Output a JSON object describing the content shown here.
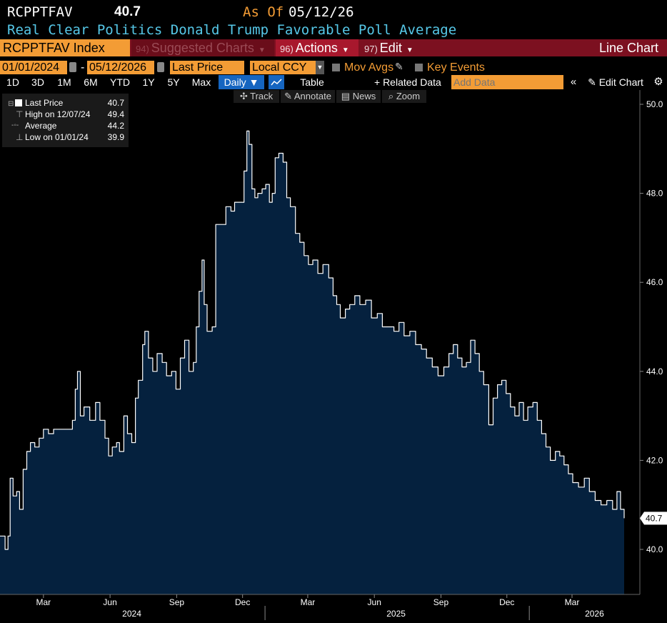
{
  "header": {
    "ticker": "RCPPTFAV",
    "price": "40.7",
    "as_of_label": "As Of",
    "as_of_date": "05/12/26",
    "subtitle": "Real Clear Politics Donald Trump Favorable Poll Average"
  },
  "toolbar": {
    "index": "RCPPTFAV Index",
    "suggested_key": "94)",
    "suggested": "Suggested Charts",
    "actions_key": "96)",
    "actions": "Actions",
    "edit_key": "97)",
    "edit": "Edit",
    "chart_type": "Line Chart"
  },
  "controls": {
    "start_date": "01/01/2024",
    "dash": "-",
    "end_date": "05/12/2026",
    "field": "Last Price",
    "currency": "Local CCY",
    "mov_avgs": "Mov Avgs",
    "key_events": "Key Events"
  },
  "periods": [
    "1D",
    "3D",
    "1M",
    "6M",
    "YTD",
    "1Y",
    "5Y",
    "Max"
  ],
  "frequency": "Daily",
  "table_label": "Table",
  "related_data": "+ Related Data",
  "add_data_placeholder": "Add Data",
  "edit_chart": "Edit Chart",
  "chart_tools": {
    "track": "Track",
    "annotate": "Annotate",
    "news": "News",
    "zoom": "Zoom"
  },
  "legend": {
    "last_label": "Last Price",
    "last_value": "40.7",
    "high_label": "High on 12/07/24",
    "high_value": "49.4",
    "avg_label": "Average",
    "avg_value": "44.2",
    "low_label": "Low on 01/01/24",
    "low_value": "39.9"
  },
  "colors": {
    "area_fill": "#05213e",
    "line": "#ffffff",
    "accent_orange": "#f39c35",
    "subtitle_cyan": "#56c8e8",
    "toolbar_red": "#7c1020"
  },
  "chart_data": {
    "type": "area",
    "series_name": "RCPPTFAV Index",
    "ylim": [
      39.0,
      50.2
    ],
    "yticks": [
      "40.0",
      "42.0",
      "44.0",
      "46.0",
      "48.0",
      "50.0"
    ],
    "last_value_label": "40.7",
    "xticks": [
      "Mar",
      "Jun",
      "Sep",
      "Dec",
      "Mar",
      "Jun",
      "Sep",
      "Dec",
      "Mar"
    ],
    "xtick_dates": [
      "2024-03-01",
      "2024-06-01",
      "2024-09-01",
      "2024-12-01",
      "2025-03-01",
      "2025-06-01",
      "2025-09-01",
      "2025-12-01",
      "2026-03-01"
    ],
    "years": [
      "2024",
      "2025",
      "2026"
    ],
    "year_dates": [
      "2024-07-01",
      "2025-07-01",
      "2026-04-01"
    ],
    "x_range": [
      "2024-01-01",
      "2026-05-12"
    ],
    "points": [
      [
        "2024-01-01",
        40.3
      ],
      [
        "2024-01-04",
        40.3
      ],
      [
        "2024-01-08",
        40.0
      ],
      [
        "2024-01-12",
        40.3
      ],
      [
        "2024-01-15",
        41.6
      ],
      [
        "2024-01-19",
        41.2
      ],
      [
        "2024-01-24",
        41.3
      ],
      [
        "2024-01-28",
        40.9
      ],
      [
        "2024-02-02",
        41.8
      ],
      [
        "2024-02-07",
        42.2
      ],
      [
        "2024-02-12",
        42.4
      ],
      [
        "2024-02-18",
        42.3
      ],
      [
        "2024-02-24",
        42.5
      ],
      [
        "2024-03-01",
        42.7
      ],
      [
        "2024-03-08",
        42.6
      ],
      [
        "2024-03-15",
        42.7
      ],
      [
        "2024-03-25",
        42.7
      ],
      [
        "2024-04-05",
        42.7
      ],
      [
        "2024-04-10",
        42.9
      ],
      [
        "2024-04-14",
        43.6
      ],
      [
        "2024-04-17",
        44.0
      ],
      [
        "2024-04-21",
        43.0
      ],
      [
        "2024-04-26",
        43.2
      ],
      [
        "2024-05-04",
        42.9
      ],
      [
        "2024-05-12",
        43.3
      ],
      [
        "2024-05-18",
        42.9
      ],
      [
        "2024-05-25",
        42.5
      ],
      [
        "2024-05-30",
        42.1
      ],
      [
        "2024-06-04",
        42.3
      ],
      [
        "2024-06-10",
        42.4
      ],
      [
        "2024-06-14",
        42.2
      ],
      [
        "2024-06-20",
        43.0
      ],
      [
        "2024-06-25",
        42.6
      ],
      [
        "2024-07-01",
        42.4
      ],
      [
        "2024-07-06",
        43.4
      ],
      [
        "2024-07-10",
        43.8
      ],
      [
        "2024-07-16",
        44.6
      ],
      [
        "2024-07-19",
        44.9
      ],
      [
        "2024-07-24",
        44.3
      ],
      [
        "2024-07-30",
        44.0
      ],
      [
        "2024-08-05",
        44.4
      ],
      [
        "2024-08-12",
        44.2
      ],
      [
        "2024-08-18",
        43.9
      ],
      [
        "2024-08-25",
        44.0
      ],
      [
        "2024-08-31",
        43.6
      ],
      [
        "2024-09-06",
        44.3
      ],
      [
        "2024-09-12",
        44.7
      ],
      [
        "2024-09-18",
        44.0
      ],
      [
        "2024-09-24",
        44.2
      ],
      [
        "2024-09-28",
        45.0
      ],
      [
        "2024-10-02",
        45.8
      ],
      [
        "2024-10-06",
        46.5
      ],
      [
        "2024-10-09",
        45.5
      ],
      [
        "2024-10-13",
        44.9
      ],
      [
        "2024-10-20",
        45.0
      ],
      [
        "2024-10-25",
        47.3
      ],
      [
        "2024-11-01",
        47.3
      ],
      [
        "2024-11-08",
        47.7
      ],
      [
        "2024-11-15",
        47.6
      ],
      [
        "2024-11-20",
        47.8
      ],
      [
        "2024-11-28",
        47.8
      ],
      [
        "2024-12-03",
        48.5
      ],
      [
        "2024-12-07",
        49.4
      ],
      [
        "2024-12-10",
        49.1
      ],
      [
        "2024-12-14",
        48.1
      ],
      [
        "2024-12-18",
        47.9
      ],
      [
        "2024-12-22",
        48.0
      ],
      [
        "2024-12-28",
        48.1
      ],
      [
        "2025-01-02",
        48.2
      ],
      [
        "2025-01-07",
        47.8
      ],
      [
        "2025-01-11",
        48.0
      ],
      [
        "2025-01-15",
        48.8
      ],
      [
        "2025-01-20",
        48.9
      ],
      [
        "2025-01-26",
        48.7
      ],
      [
        "2025-01-31",
        47.9
      ],
      [
        "2025-02-05",
        47.7
      ],
      [
        "2025-02-12",
        47.1
      ],
      [
        "2025-02-18",
        46.9
      ],
      [
        "2025-02-24",
        46.6
      ],
      [
        "2025-03-02",
        46.4
      ],
      [
        "2025-03-08",
        46.5
      ],
      [
        "2025-03-15",
        46.2
      ],
      [
        "2025-03-22",
        46.4
      ],
      [
        "2025-03-30",
        46.1
      ],
      [
        "2025-04-05",
        45.7
      ],
      [
        "2025-04-10",
        45.5
      ],
      [
        "2025-04-15",
        45.2
      ],
      [
        "2025-04-22",
        45.4
      ],
      [
        "2025-04-28",
        45.5
      ],
      [
        "2025-05-05",
        45.7
      ],
      [
        "2025-05-12",
        45.5
      ],
      [
        "2025-05-20",
        45.6
      ],
      [
        "2025-05-28",
        45.2
      ],
      [
        "2025-06-05",
        45.3
      ],
      [
        "2025-06-12",
        45.0
      ],
      [
        "2025-06-20",
        45.0
      ],
      [
        "2025-06-28",
        44.9
      ],
      [
        "2025-07-05",
        45.1
      ],
      [
        "2025-07-12",
        44.8
      ],
      [
        "2025-07-20",
        44.9
      ],
      [
        "2025-07-28",
        44.6
      ],
      [
        "2025-08-05",
        44.5
      ],
      [
        "2025-08-12",
        44.3
      ],
      [
        "2025-08-20",
        44.1
      ],
      [
        "2025-08-28",
        43.9
      ],
      [
        "2025-09-05",
        44.1
      ],
      [
        "2025-09-12",
        44.4
      ],
      [
        "2025-09-18",
        44.6
      ],
      [
        "2025-09-24",
        44.3
      ],
      [
        "2025-09-30",
        44.1
      ],
      [
        "2025-10-06",
        44.2
      ],
      [
        "2025-10-12",
        44.7
      ],
      [
        "2025-10-18",
        44.4
      ],
      [
        "2025-10-24",
        44.0
      ],
      [
        "2025-10-30",
        43.7
      ],
      [
        "2025-11-06",
        42.8
      ],
      [
        "2025-11-12",
        43.4
      ],
      [
        "2025-11-18",
        43.7
      ],
      [
        "2025-11-24",
        43.8
      ],
      [
        "2025-11-30",
        43.5
      ],
      [
        "2025-12-06",
        43.2
      ],
      [
        "2025-12-12",
        43.0
      ],
      [
        "2025-12-18",
        43.3
      ],
      [
        "2025-12-24",
        42.9
      ],
      [
        "2025-12-30",
        43.2
      ],
      [
        "2026-01-06",
        43.3
      ],
      [
        "2026-01-12",
        42.9
      ],
      [
        "2026-01-18",
        42.6
      ],
      [
        "2026-01-24",
        42.3
      ],
      [
        "2026-01-30",
        42.0
      ],
      [
        "2026-02-06",
        42.2
      ],
      [
        "2026-02-12",
        42.1
      ],
      [
        "2026-02-18",
        41.9
      ],
      [
        "2026-02-24",
        41.7
      ],
      [
        "2026-03-02",
        41.5
      ],
      [
        "2026-03-10",
        41.4
      ],
      [
        "2026-03-18",
        41.6
      ],
      [
        "2026-03-25",
        41.3
      ],
      [
        "2026-04-02",
        41.1
      ],
      [
        "2026-04-10",
        41.0
      ],
      [
        "2026-04-18",
        41.1
      ],
      [
        "2026-04-26",
        40.9
      ],
      [
        "2026-05-02",
        41.3
      ],
      [
        "2026-05-07",
        40.9
      ],
      [
        "2026-05-12",
        40.7
      ]
    ]
  }
}
